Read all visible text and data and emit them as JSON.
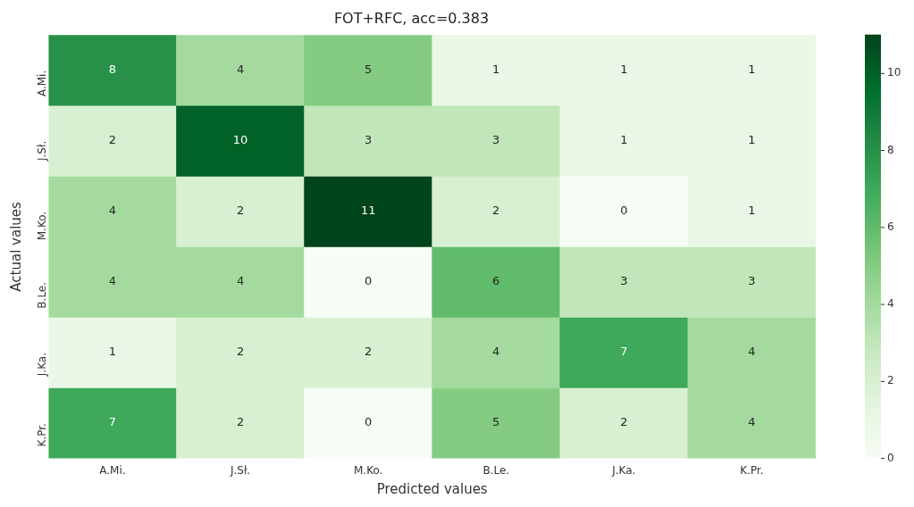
{
  "chart_data": {
    "type": "heatmap",
    "title": "FOT+RFC, acc=0.383",
    "xlabel": "Predicted values",
    "ylabel": "Actual values",
    "categories": [
      "A.Mi.",
      "J.Sł.",
      "M.Ko.",
      "B.Le.",
      "J.Ka.",
      "K.Pr."
    ],
    "y_categories": [
      "A.Mi.",
      "J.Sł.",
      "M.Ko.",
      "B.Le.",
      "J.Ka.",
      "K.Pr."
    ],
    "cells": [
      [
        8,
        4,
        5,
        1,
        1,
        1
      ],
      [
        2,
        10,
        3,
        3,
        1,
        1
      ],
      [
        4,
        2,
        11,
        2,
        0,
        1
      ],
      [
        4,
        4,
        0,
        6,
        3,
        3
      ],
      [
        1,
        2,
        2,
        4,
        7,
        4
      ],
      [
        7,
        2,
        0,
        5,
        2,
        4
      ]
    ],
    "clim": [
      0,
      11
    ],
    "cticks": [
      0,
      2,
      4,
      6,
      8,
      10
    ],
    "data_labels": true
  }
}
